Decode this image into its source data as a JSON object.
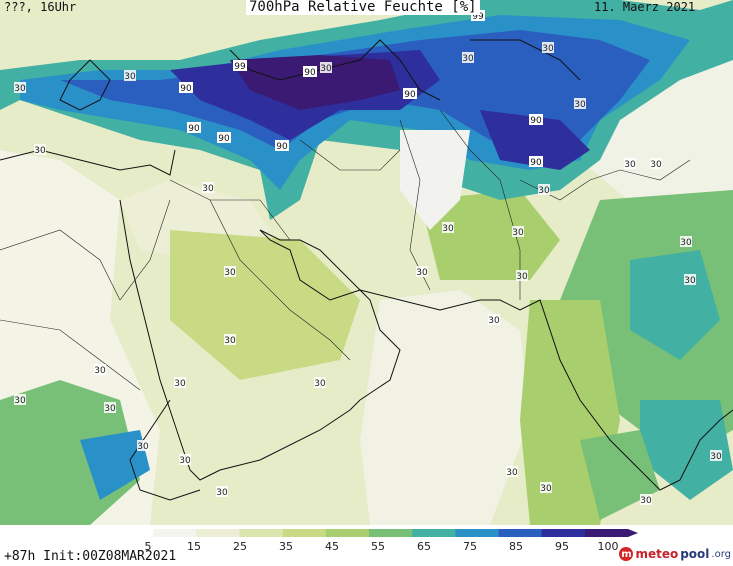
{
  "header": {
    "left": "???, 16Uhr",
    "title": "700hPa Relative Feuchte [%]",
    "date": "11. Maerz 2021"
  },
  "colorbar": {
    "labels": [
      "5",
      "15",
      "25",
      "35",
      "45",
      "55",
      "65",
      "75",
      "85",
      "95",
      "100"
    ],
    "colors": [
      "#ffffff",
      "#f4f4ef",
      "#ecefd6",
      "#dbe5ae",
      "#c8da84",
      "#a8ce6e",
      "#78c078",
      "#42b0a2",
      "#2a90c8",
      "#2a5fbf",
      "#2e2e9c",
      "#3a1a72"
    ]
  },
  "footer": {
    "run": "+87h Init:00Z08MAR2021",
    "brand_mark": "m",
    "brand_a": "meteo",
    "brand_b": "pool",
    "brand_c": ".org"
  },
  "contour_labels": [
    "30",
    "90",
    "99"
  ]
}
